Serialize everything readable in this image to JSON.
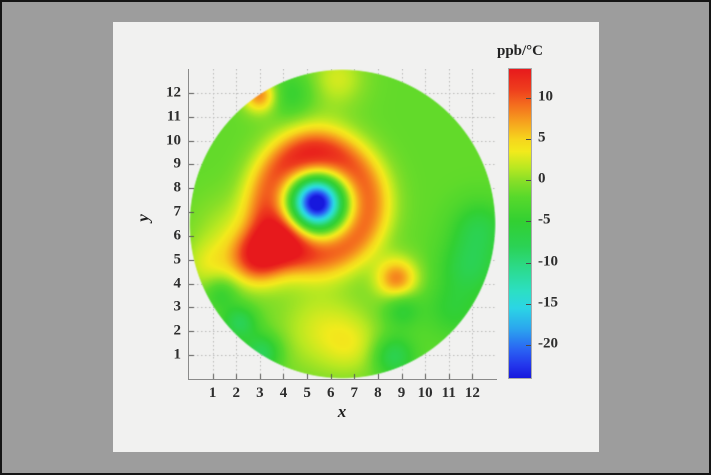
{
  "window": {
    "background_color": "#9d9d9d",
    "border_color": "#151515",
    "panel_color": "#f1f1f0"
  },
  "chart_data": {
    "type": "heatmap",
    "subtype": "circular-interpolated-surface",
    "xlabel": "x",
    "ylabel": "y",
    "colorbar_label": "ppb/°C",
    "xlim": [
      0,
      13
    ],
    "ylim": [
      0,
      13
    ],
    "x_ticks": [
      "1",
      "2",
      "3",
      "4",
      "5",
      "6",
      "7",
      "8",
      "9",
      "10",
      "11",
      "12"
    ],
    "y_ticks": [
      "1",
      "2",
      "3",
      "4",
      "5",
      "6",
      "7",
      "8",
      "9",
      "10",
      "11",
      "12"
    ],
    "grid": "dotted",
    "grid_color": "#b9b9b9",
    "legend_position": "colorbar-right",
    "colorbar_ticks": [
      "10",
      "5",
      "0",
      "-5",
      "-10",
      "-15",
      "-20"
    ],
    "colorbar_tick_values": [
      10,
      5,
      0,
      -5,
      -10,
      -15,
      -20
    ],
    "value_range": [
      -24,
      13.5
    ],
    "disk": {
      "cx": 6.5,
      "cy": 6.5,
      "r": 6.5
    },
    "colormap": [
      [
        13.5,
        "#e7191c"
      ],
      [
        11,
        "#ee3e1d"
      ],
      [
        9,
        "#f4711e"
      ],
      [
        7,
        "#f6a31e"
      ],
      [
        5,
        "#f6d51d"
      ],
      [
        3.5,
        "#f2ea1c"
      ],
      [
        1.5,
        "#b8e821"
      ],
      [
        0,
        "#8adf27"
      ],
      [
        -2,
        "#58d92b"
      ],
      [
        -5,
        "#32d032"
      ],
      [
        -8,
        "#2bd254"
      ],
      [
        -11,
        "#2cdb92"
      ],
      [
        -13.5,
        "#2cdfc4"
      ],
      [
        -15.5,
        "#2bd5e5"
      ],
      [
        -18,
        "#2ba6ee"
      ],
      [
        -20.5,
        "#2a64f3"
      ],
      [
        -22.5,
        "#2335ec"
      ],
      [
        -24,
        "#1718dd"
      ]
    ],
    "field": {
      "base": -1.6,
      "blobs": [
        {
          "type": "ring",
          "x": 5.45,
          "y": 7.35,
          "radius": 2.1,
          "width": 0.75,
          "amp": 11
        },
        {
          "type": "gauss",
          "x": 5.4,
          "y": 7.4,
          "amp": -26,
          "sigma": 0.75
        },
        {
          "type": "gauss",
          "x": 5.2,
          "y": 9.4,
          "amp": 4,
          "sigma": 1.15
        },
        {
          "type": "gauss",
          "x": 2.9,
          "y": 5.1,
          "amp": 13.5,
          "sigma": 0.8
        },
        {
          "type": "gauss",
          "x": 4.1,
          "y": 5.85,
          "amp": 5.5,
          "sigma": 0.85
        },
        {
          "type": "gauss",
          "x": 8.8,
          "y": 4.2,
          "amp": 10,
          "sigma": 0.62
        },
        {
          "type": "gauss",
          "x": 3.0,
          "y": 11.9,
          "amp": 10,
          "sigma": 0.5
        },
        {
          "type": "gauss",
          "x": 6.3,
          "y": 12.6,
          "amp": 4,
          "sigma": 0.8
        },
        {
          "type": "gauss",
          "x": 5.6,
          "y": 2.1,
          "amp": 4,
          "sigma": 1.3
        },
        {
          "type": "gauss",
          "x": 7.0,
          "y": 1.4,
          "amp": 3,
          "sigma": 0.9
        },
        {
          "type": "gauss",
          "x": 0.85,
          "y": 4.75,
          "amp": 4,
          "sigma": 0.8
        },
        {
          "type": "gauss",
          "x": 1.6,
          "y": 6.3,
          "amp": 2.5,
          "sigma": 1.0
        },
        {
          "type": "gauss",
          "x": 2.15,
          "y": 2.35,
          "amp": -6.5,
          "sigma": 0.5
        },
        {
          "type": "gauss",
          "x": 3.1,
          "y": 1.1,
          "amp": -7,
          "sigma": 0.55
        },
        {
          "type": "gauss",
          "x": 8.65,
          "y": 0.95,
          "amp": -6.5,
          "sigma": 0.6
        },
        {
          "type": "gauss",
          "x": 9.0,
          "y": 2.95,
          "amp": -4.5,
          "sigma": 0.55
        },
        {
          "type": "gauss",
          "x": 11.9,
          "y": 4.7,
          "amp": -5.5,
          "sigma": 0.85
        },
        {
          "type": "gauss",
          "x": 12.3,
          "y": 6.3,
          "amp": -5,
          "sigma": 0.8
        },
        {
          "type": "gauss",
          "x": 11.2,
          "y": 2.9,
          "amp": -3.5,
          "sigma": 0.8
        },
        {
          "type": "gauss",
          "x": 4.3,
          "y": 11.9,
          "amp": -3.5,
          "sigma": 0.7
        },
        {
          "type": "gauss",
          "x": 1.35,
          "y": 3.6,
          "amp": -4,
          "sigma": 0.5
        }
      ]
    }
  }
}
